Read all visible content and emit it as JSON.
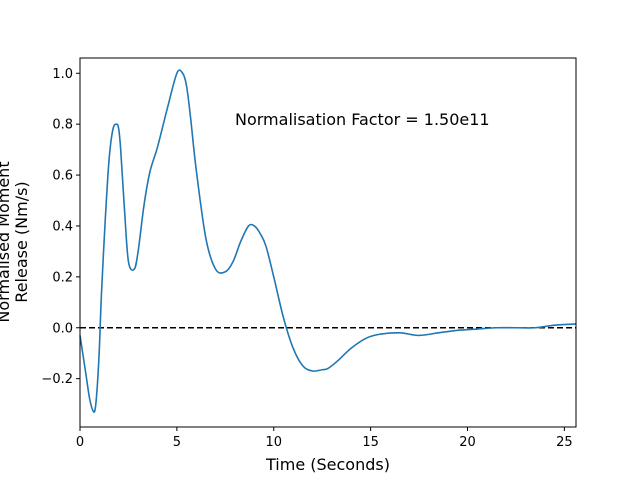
{
  "chart_data": {
    "type": "line",
    "title": "",
    "xlabel": "Time (Seconds)",
    "ylabel_lines": [
      "Normalised Moment",
      "Release (Nm/s)"
    ],
    "annotation": "Normalisation Factor = 1.50e11",
    "xlim": [
      0,
      25.6
    ],
    "ylim": [
      -0.39,
      1.06
    ],
    "xticks": [
      0,
      5,
      10,
      15,
      20,
      25
    ],
    "xtick_labels": [
      "0",
      "5",
      "10",
      "15",
      "20",
      "25"
    ],
    "yticks": [
      -0.2,
      0.0,
      0.2,
      0.4,
      0.6,
      0.8,
      1.0
    ],
    "ytick_labels": [
      "−0.2",
      "0.0",
      "0.2",
      "0.4",
      "0.6",
      "0.8",
      "1.0"
    ],
    "grid": false,
    "reference_line": {
      "y": 0.0,
      "style": "dashed",
      "color": "#000000"
    },
    "series": [
      {
        "color": "#1f77b4",
        "x": [
          0,
          0.3,
          0.5,
          0.7,
          0.8,
          0.9,
          1.0,
          1.1,
          1.3,
          1.5,
          1.7,
          1.9,
          2.0,
          2.1,
          2.3,
          2.5,
          2.8,
          3.0,
          3.3,
          3.6,
          4.0,
          4.5,
          5.0,
          5.3,
          5.5,
          5.7,
          6.0,
          6.5,
          7.0,
          7.5,
          7.9,
          8.3,
          8.7,
          9.0,
          9.3,
          9.6,
          10.0,
          10.5,
          11.0,
          11.5,
          12.0,
          12.5,
          12.8,
          13.3,
          14.0,
          14.8,
          15.5,
          16.5,
          17.5,
          18.5,
          19.5,
          20.5,
          21.5,
          22.5,
          23.5,
          24.5,
          25.6
        ],
        "y": [
          -0.03,
          -0.18,
          -0.28,
          -0.33,
          -0.31,
          -0.22,
          -0.08,
          0.12,
          0.42,
          0.66,
          0.78,
          0.8,
          0.78,
          0.7,
          0.46,
          0.26,
          0.23,
          0.3,
          0.48,
          0.61,
          0.71,
          0.86,
          1.0,
          1.0,
          0.95,
          0.83,
          0.62,
          0.35,
          0.23,
          0.22,
          0.26,
          0.34,
          0.4,
          0.4,
          0.37,
          0.32,
          0.2,
          0.04,
          -0.08,
          -0.15,
          -0.17,
          -0.165,
          -0.16,
          -0.13,
          -0.08,
          -0.04,
          -0.025,
          -0.02,
          -0.03,
          -0.02,
          -0.01,
          -0.005,
          0.0,
          0.0,
          0.0,
          0.01,
          0.015
        ]
      }
    ]
  }
}
